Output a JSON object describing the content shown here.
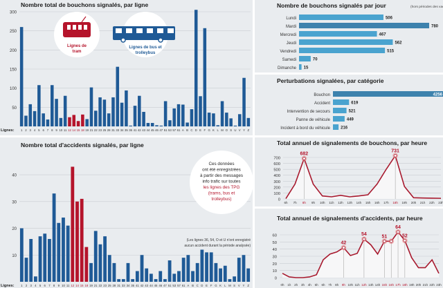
{
  "colors": {
    "bus": "#1f5a96",
    "tram": "#b5142b",
    "bar_light": "#4aa3cf",
    "bar_dark": "#3d82ad",
    "line": "#a8192e",
    "bg": "#e9ecef"
  },
  "chart_data": [
    {
      "id": "bouchons_ligne",
      "type": "bar",
      "title": "Nombre total de bouchons signalés, par ligne",
      "xlabel": "Lignes:",
      "ylim": [
        0,
        300
      ],
      "yticks": [
        50,
        100,
        150,
        200,
        250,
        300
      ],
      "grid": true,
      "legend": [
        {
          "label_lines": [
            "Lignes de",
            "tram"
          ],
          "icon": "tram-icon",
          "color": "#b5142b"
        },
        {
          "label_lines": [
            "Lignes de bus et",
            "trolleybus"
          ],
          "icon": "bus-icon",
          "color": "#1f5a96"
        }
      ],
      "tram_lines": [
        "12",
        "14",
        "15",
        "18"
      ],
      "categories": [
        "1",
        "2",
        "3",
        "4",
        "5",
        "6",
        "7",
        "8",
        "9",
        "10",
        "11",
        "12",
        "14",
        "15",
        "18",
        "19",
        "21",
        "22",
        "23",
        "25",
        "28",
        "31",
        "33",
        "34",
        "35",
        "36",
        "41",
        "42",
        "43",
        "44",
        "45",
        "46",
        "47",
        "51",
        "53",
        "57",
        "61",
        "A",
        "B",
        "C",
        "D",
        "E",
        "F",
        "G",
        "K",
        "L",
        "M",
        "O",
        "S",
        "U",
        "V",
        "Y",
        "Z"
      ],
      "values": [
        260,
        28,
        58,
        40,
        108,
        34,
        18,
        108,
        72,
        22,
        80,
        24,
        30,
        14,
        31,
        19,
        102,
        41,
        76,
        70,
        34,
        76,
        156,
        62,
        94,
        2,
        54,
        80,
        38,
        9,
        9,
        3,
        2,
        66,
        16,
        47,
        58,
        57,
        10,
        45,
        305,
        79,
        257,
        36,
        34,
        3,
        66,
        36,
        21,
        2,
        32,
        127,
        22
      ]
    },
    {
      "id": "accidents_ligne",
      "type": "bar",
      "title": "Nombre total d'accidents signalés, par ligne",
      "xlabel": "Lignes:",
      "ylim": [
        0,
        45
      ],
      "yticks": [
        10,
        20,
        30,
        40
      ],
      "grid": true,
      "note_lines": [
        "Ces données",
        "ont été enregistrées",
        "à partir des messages",
        "info trafic sur toutes",
        "les lignes des TPG",
        "(trams, bus et",
        "trolleybus)"
      ],
      "annotation_lines": [
        "(Les lignes 36, 54, O et U n'ont enregistré",
        "aucun accident durant la période analysée)"
      ],
      "tram_lines": [
        "12",
        "14",
        "15",
        "18"
      ],
      "categories": [
        "1",
        "2",
        "3",
        "4",
        "5",
        "6",
        "7",
        "8",
        "9",
        "10",
        "11",
        "12",
        "14",
        "15",
        "18",
        "19",
        "21",
        "22",
        "23",
        "25",
        "28",
        "31",
        "33",
        "34",
        "35",
        "41",
        "42",
        "43",
        "44",
        "45",
        "46",
        "47",
        "51",
        "53",
        "57",
        "61",
        "A",
        "B",
        "C",
        "D",
        "E",
        "F",
        "G",
        "K",
        "L",
        "M",
        "S",
        "V",
        "Y",
        "Z"
      ],
      "values": [
        20,
        9,
        16,
        2,
        17,
        18,
        16,
        33,
        22,
        24,
        21,
        43,
        30,
        31,
        13,
        7,
        19,
        14,
        17,
        10,
        7,
        1,
        1,
        7,
        1,
        4,
        10,
        5,
        3,
        1,
        4,
        1,
        8,
        3,
        4,
        9,
        10,
        4,
        7,
        12,
        11,
        11,
        7,
        5,
        6,
        1,
        2,
        9,
        10,
        5
      ]
    },
    {
      "id": "bouchons_jour",
      "type": "bar",
      "orientation": "horizontal",
      "title": "Nombre de bouchons signalés par jour",
      "subtitle": "(hors périodes des vacances scolaires)",
      "categories": [
        "Lundi",
        "Mardi",
        "Mercredi",
        "Jeudi",
        "Vendredi",
        "Samedi",
        "Dimanche"
      ],
      "values": [
        506,
        780,
        467,
        562,
        515,
        70,
        15
      ],
      "highlight": "Mardi"
    },
    {
      "id": "perturbations",
      "type": "bar",
      "orientation": "horizontal",
      "title": "Perturbations signalées, par catégorie",
      "categories": [
        "Bouchon",
        "Accident",
        "Intervention de secours",
        "Panne de véhicule",
        "Incident à bord du véhicule"
      ],
      "values": [
        4256,
        619,
        521,
        449,
        216
      ],
      "highlight": "Bouchon"
    },
    {
      "id": "bouchons_heure",
      "type": "area",
      "title": "Total annuel de signalements de bouchons, par heure",
      "ylim": [
        0,
        750
      ],
      "yticks": [
        0,
        100,
        200,
        300,
        400,
        500,
        600,
        700
      ],
      "grid": true,
      "x": [
        "6h",
        "7h",
        "8h",
        "9h",
        "10h",
        "11h",
        "12h",
        "13h",
        "14h",
        "15h",
        "16h",
        "17h",
        "18h",
        "19h",
        "20h",
        "21h",
        "22h",
        "23h"
      ],
      "values": [
        5,
        250,
        682,
        250,
        50,
        35,
        60,
        35,
        50,
        70,
        250,
        500,
        731,
        210,
        20,
        15,
        12,
        10
      ],
      "labeled_points": [
        "8h",
        "18h"
      ]
    },
    {
      "id": "accidents_heure",
      "type": "area",
      "title": "Total annuel de signalements d'accidents, par heure",
      "ylim": [
        0,
        65
      ],
      "yticks": [
        0,
        10,
        20,
        30,
        40,
        50,
        60
      ],
      "grid": true,
      "x": [
        "0h",
        "1h",
        "2h",
        "3h",
        "4h",
        "5h",
        "6h",
        "7h",
        "8h",
        "9h",
        "10h",
        "11h",
        "12h",
        "13h",
        "14h",
        "15h",
        "16h",
        "17h",
        "18h",
        "19h",
        "20h",
        "21h",
        "22h",
        "23h"
      ],
      "values": [
        6,
        1,
        0,
        0,
        1,
        4,
        25,
        33,
        36,
        42,
        31,
        34,
        54,
        46,
        33,
        51,
        51,
        64,
        52,
        28,
        14,
        14,
        25,
        6
      ],
      "labeled_points": [
        "9h",
        "12h",
        "15h",
        "16h",
        "17h",
        "18h"
      ],
      "value_labels": {
        "9h": "42",
        "12h": "54",
        "15h": "51",
        "17h": "64",
        "18h": "52"
      }
    }
  ]
}
